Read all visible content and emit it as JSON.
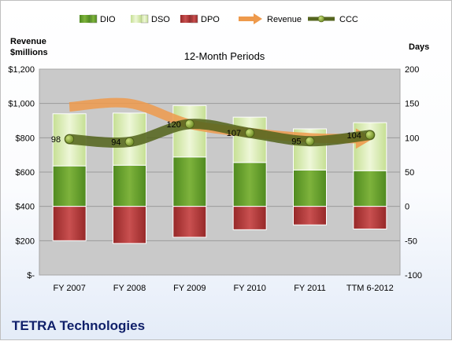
{
  "footer_title": "TETRA Technologies",
  "colors": {
    "dio": "#6a9f2d",
    "dso": "#d9ecb0",
    "dpo": "#b13e3e",
    "revenue": "#ee9a4c",
    "ccc": "#55651f",
    "plot_bg": "#c9c9c9"
  },
  "chart_data": {
    "type": "bar",
    "title": "12-Month Periods",
    "categories": [
      "FY 2007",
      "FY 2008",
      "FY 2009",
      "FY 2010",
      "FY 2011",
      "TTM 6-2012"
    ],
    "left_axis": {
      "label_line1": "Revenue",
      "label_line2": "$millions",
      "range": [
        0,
        1200
      ],
      "ticks": [
        0,
        200,
        400,
        600,
        800,
        1000,
        1200
      ],
      "tick_labels": [
        "$-",
        "$200",
        "$400",
        "$600",
        "$800",
        "$1,000",
        "$1,200"
      ]
    },
    "right_axis": {
      "label": "Days",
      "range": [
        -100,
        200
      ],
      "ticks": [
        -100,
        -50,
        0,
        50,
        100,
        150,
        200
      ],
      "tick_labels": [
        "-100",
        "-50",
        "0",
        "50",
        "100",
        "150",
        "200"
      ]
    },
    "grid": true,
    "legend_position": "top",
    "series": [
      {
        "name": "DIO",
        "kind": "stacked-bar",
        "axis": "right",
        "values": [
          59,
          60,
          72,
          64,
          53,
          52
        ]
      },
      {
        "name": "DSO",
        "kind": "stacked-bar",
        "axis": "right",
        "values": [
          76,
          76,
          75,
          66,
          60,
          70
        ]
      },
      {
        "name": "DPO",
        "kind": "negative-bar",
        "axis": "right",
        "values": [
          -50,
          -54,
          -45,
          -34,
          -27,
          -33
        ]
      },
      {
        "name": "Revenue",
        "kind": "line",
        "axis": "left",
        "values": [
          980,
          1000,
          880,
          830,
          800,
          795
        ]
      },
      {
        "name": "CCC",
        "kind": "line",
        "axis": "right",
        "values": [
          98,
          94,
          120,
          107,
          95,
          104
        ],
        "labels": [
          "98",
          "94",
          "120",
          "107",
          "95",
          "104"
        ]
      }
    ]
  }
}
